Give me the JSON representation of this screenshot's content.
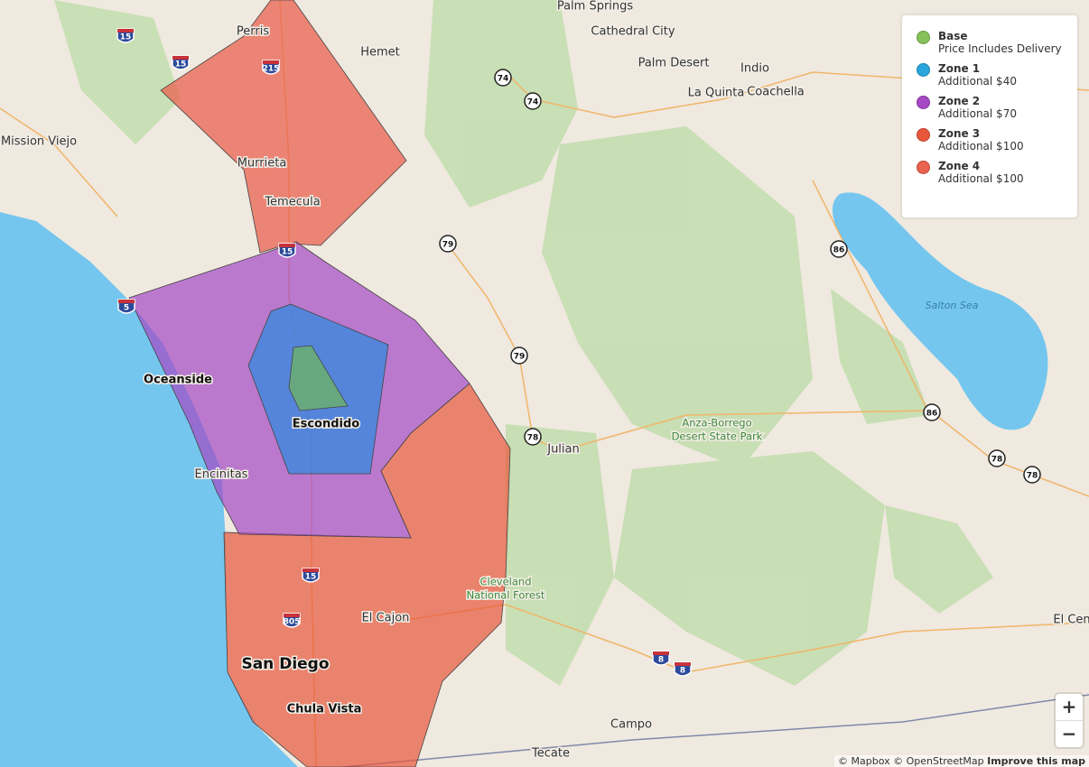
{
  "legend": {
    "items": [
      {
        "name": "Base",
        "description": "Price Includes Delivery",
        "color": "#86c25a"
      },
      {
        "name": "Zone 1",
        "description": "Additional $40",
        "color": "#2aa6dc"
      },
      {
        "name": "Zone 2",
        "description": "Additional $70",
        "color": "#a548c4"
      },
      {
        "name": "Zone 3",
        "description": "Additional $100",
        "color": "#e8573c"
      },
      {
        "name": "Zone 4",
        "description": "Additional $100",
        "color": "#ea6250"
      }
    ]
  },
  "places": [
    "Palm Springs",
    "Cathedral City",
    "Hemet",
    "Perris",
    "Palm Desert",
    "Indio",
    "La Quinta",
    "Coachella",
    "Mission Viejo",
    "Murrieta",
    "Temecula",
    "Salton Sea",
    "Oceanside",
    "Escondido",
    "Encinitas",
    "Julian",
    "Anza-Borrego",
    "Desert State Park",
    "Cleveland",
    "National Forest",
    "El Cajon",
    "San Diego",
    "Chula Vista",
    "Campo",
    "Tecate",
    "El Cen"
  ],
  "interstates": [
    "15",
    "15",
    "215",
    "15",
    "5",
    "15",
    "805",
    "8",
    "8"
  ],
  "state_routes": [
    "74",
    "74",
    "79",
    "79",
    "78",
    "86",
    "86",
    "78",
    "78"
  ],
  "controls": {
    "zoom_in": "+",
    "zoom_out": "−"
  },
  "attribution": {
    "mapbox": "© Mapbox",
    "osm": "© OpenStreetMap",
    "improve": "Improve this map"
  }
}
